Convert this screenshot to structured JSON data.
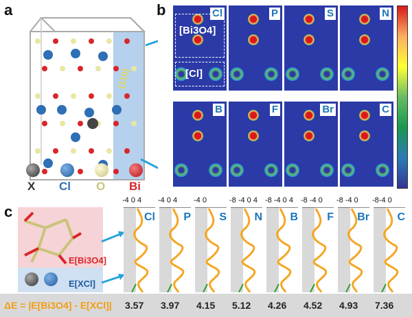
{
  "panels": {
    "a": "a",
    "b": "b",
    "c": "c"
  },
  "panel_a": {
    "plane_label": "(110)",
    "legend": [
      {
        "symbol": "X",
        "color": "#444444",
        "label_color": "#333333"
      },
      {
        "symbol": "Cl",
        "color": "#2e6fb5",
        "label_color": "#2e6fb5"
      },
      {
        "symbol": "O",
        "color": "#e9e6a3",
        "label_color": "#c9c47a"
      },
      {
        "symbol": "Bi",
        "color": "#d9262b",
        "label_color": "#d9262b"
      }
    ]
  },
  "panel_b": {
    "maps": [
      {
        "element": "Cl"
      },
      {
        "element": "P"
      },
      {
        "element": "S"
      },
      {
        "element": "N"
      },
      {
        "element": "B"
      },
      {
        "element": "F"
      },
      {
        "element": "Br"
      },
      {
        "element": "C"
      }
    ],
    "box_top_label": "[Bi3O4]",
    "box_bottom_label": "[Cl]",
    "colorbar_colors": [
      "#d7191c",
      "#fdae61",
      "#ffff33",
      "#66bd63",
      "#1a9850",
      "#2c7bb6",
      "#313695"
    ]
  },
  "panel_c": {
    "e_bi3o4": "E[Bi3O4]",
    "e_xcl": "E[XCl]",
    "curves": [
      {
        "element": "Cl",
        "ticks": "-4 0 4"
      },
      {
        "element": "P",
        "ticks": "-4 0 4"
      },
      {
        "element": "S",
        "ticks": "-4 0"
      },
      {
        "element": "N",
        "ticks": "-8 -4 0 4"
      },
      {
        "element": "B",
        "ticks": "-8 -4 0 4"
      },
      {
        "element": "F",
        "ticks": "-8 -4 0"
      },
      {
        "element": "Br",
        "ticks": "-8 -4 0"
      },
      {
        "element": "C",
        "ticks": "-8-4 0"
      }
    ],
    "delta_e_label": "ΔE = |E[Bi3O4] - E[XCl]|",
    "delta_e_values": [
      "3.57",
      "3.97",
      "4.15",
      "5.12",
      "4.26",
      "4.52",
      "4.93",
      "7.36"
    ]
  }
}
